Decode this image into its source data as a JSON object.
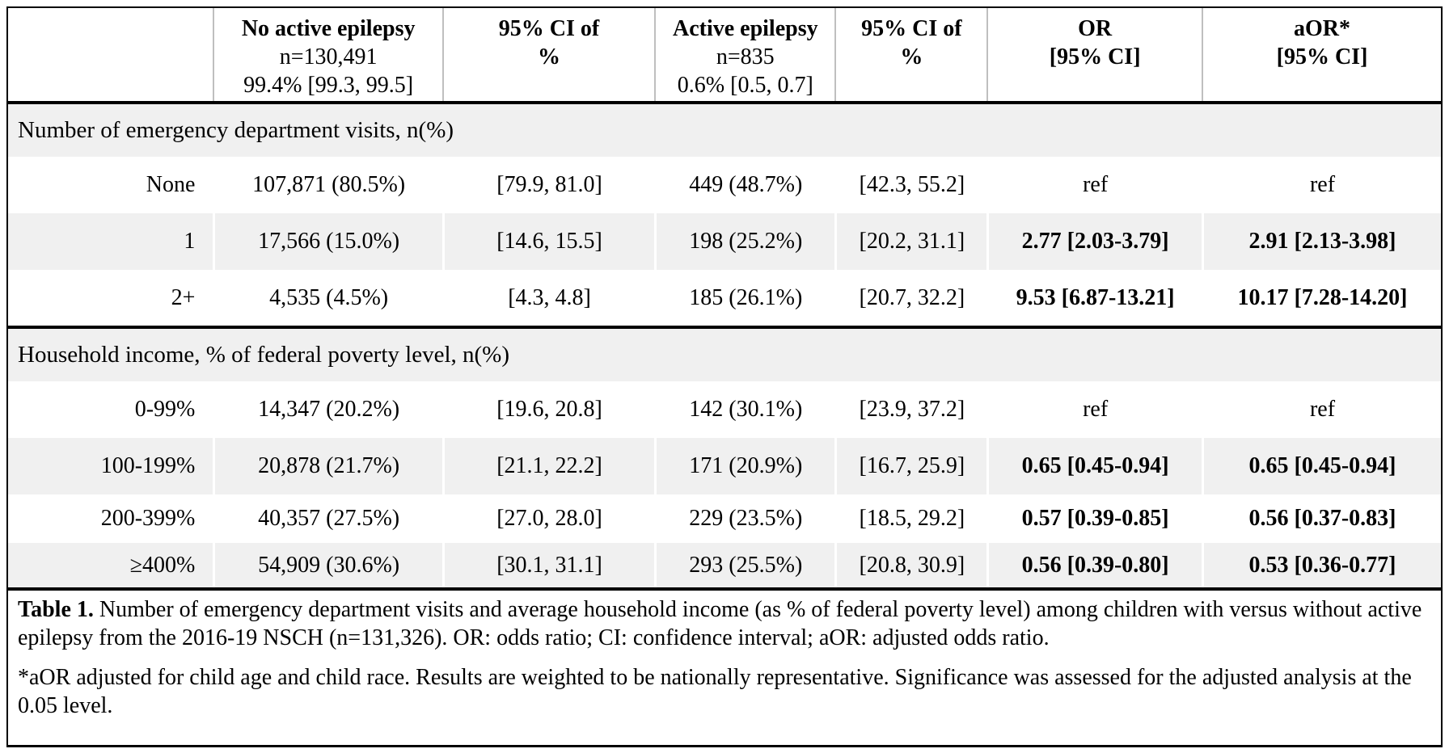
{
  "colors": {
    "row_shade": "#f0f0f0",
    "border": "#000000",
    "header_divider": "#bfbfbf"
  },
  "table": {
    "columns": [
      {
        "lines": []
      },
      {
        "lines": [
          "No active epilepsy",
          "n=130,491",
          "99.4% [99.3, 99.5]"
        ]
      },
      {
        "lines": [
          "95% CI of",
          "%"
        ]
      },
      {
        "lines": [
          "Active epilepsy",
          "n=835",
          "0.6% [0.5, 0.7]"
        ]
      },
      {
        "lines": [
          "95% CI of",
          "%"
        ]
      },
      {
        "lines": [
          "OR",
          "[95% CI]"
        ]
      },
      {
        "lines": [
          "aOR*",
          "[95% CI]"
        ]
      }
    ],
    "sections": [
      {
        "title": "Number of emergency department visits, n(%)",
        "rows": [
          {
            "label": "None",
            "cells": [
              "107,871 (80.5%)",
              "[79.9, 81.0]",
              "449 (48.7%)",
              "[42.3, 55.2]",
              "ref",
              "ref"
            ],
            "or_bold": false
          },
          {
            "label": "1",
            "cells": [
              "17,566 (15.0%)",
              "[14.6, 15.5]",
              "198 (25.2%)",
              "[20.2, 31.1]",
              "2.77 [2.03-3.79]",
              "2.91 [2.13-3.98]"
            ],
            "or_bold": true
          },
          {
            "label": "2+",
            "cells": [
              "4,535 (4.5%)",
              "[4.3, 4.8]",
              "185 (26.1%)",
              "[20.7, 32.2]",
              "9.53 [6.87-13.21]",
              "10.17 [7.28-14.20]"
            ],
            "or_bold": true
          }
        ]
      },
      {
        "title": "Household income, % of federal poverty level, n(%)",
        "rows": [
          {
            "label": "0-99%",
            "cells": [
              "14,347 (20.2%)",
              "[19.6, 20.8]",
              "142 (30.1%)",
              "[23.9, 37.2]",
              "ref",
              "ref"
            ],
            "or_bold": false
          },
          {
            "label": "100-199%",
            "cells": [
              "20,878 (21.7%)",
              "[21.1, 22.2]",
              "171 (20.9%)",
              "[16.7, 25.9]",
              "0.65 [0.45-0.94]",
              "0.65 [0.45-0.94]"
            ],
            "or_bold": true
          },
          {
            "label": "200-399%",
            "cells": [
              "40,357 (27.5%)",
              "[27.0, 28.0]",
              "229 (23.5%)",
              "[18.5, 29.2]",
              "0.57 [0.39-0.85]",
              "0.56 [0.37-0.83]"
            ],
            "or_bold": true
          },
          {
            "label": "≥400%",
            "cells": [
              "54,909 (30.6%)",
              "[30.1, 31.1]",
              "293 (25.5%)",
              "[20.8, 30.9]",
              "0.56 [0.39-0.80]",
              "0.53 [0.36-0.77]"
            ],
            "or_bold": true
          }
        ]
      }
    ],
    "caption": {
      "label": "Table 1.",
      "text": " Number of emergency department visits and average household income (as % of federal poverty level) among children with versus without active epilepsy from the 2016-19 NSCH (n=131,326). OR: odds ratio; CI: confidence interval; aOR: adjusted odds ratio.",
      "footnote": "*aOR adjusted for child age and child race. Results are weighted to be nationally representative. Significance was assessed for the adjusted analysis at the 0.05 level."
    }
  }
}
